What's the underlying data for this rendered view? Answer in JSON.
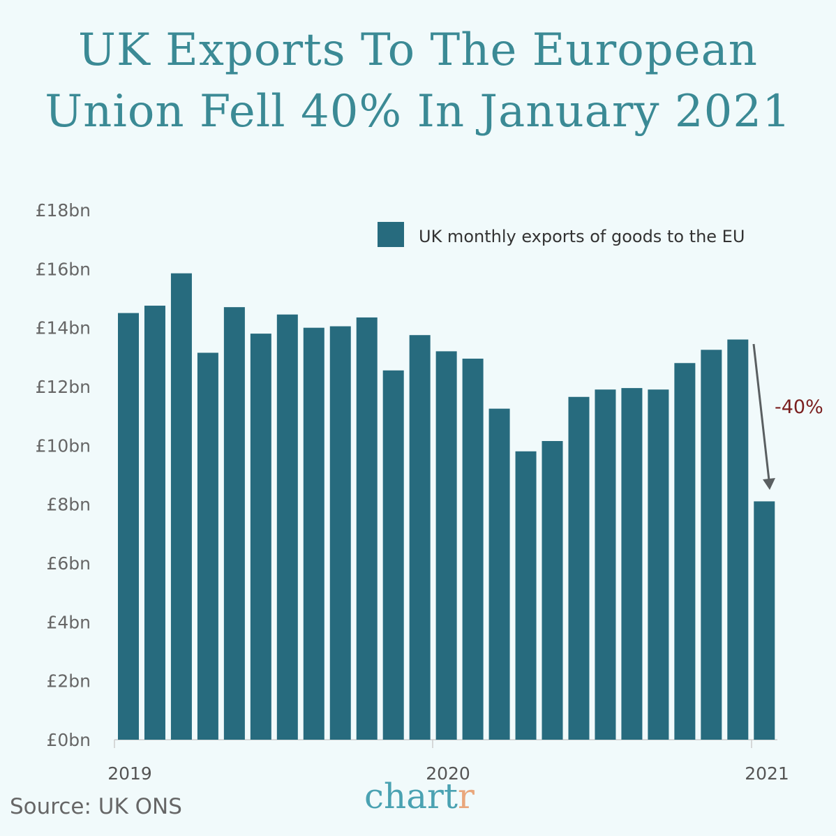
{
  "title_line1": "UK Exports To The European",
  "title_line2": "Union Fell 40% In January 2021",
  "source": "Source: UK ONS",
  "logo": {
    "main": "chart",
    "last": "r"
  },
  "colors": {
    "bar": "#276b7e",
    "title": "#3b8a95",
    "annotation": "#7a1f1f",
    "arrow": "#5a5f61",
    "background": "#f1fafb"
  },
  "chart_data": {
    "type": "bar",
    "title": "UK Exports To The European Union Fell 40% In January 2021",
    "ylim": [
      0,
      18
    ],
    "y_ticks": [
      "£0bn",
      "£2bn",
      "£4bn",
      "£6bn",
      "£8bn",
      "£10bn",
      "£12bn",
      "£14bn",
      "£16bn",
      "£18bn"
    ],
    "x_ticks": [
      "2019",
      "2020",
      "2021"
    ],
    "grid": false,
    "legend": {
      "position": "top-right",
      "entries": [
        "UK monthly exports of goods to the EU"
      ]
    },
    "categories": [
      "2019-01",
      "2019-02",
      "2019-03",
      "2019-04",
      "2019-05",
      "2019-06",
      "2019-07",
      "2019-08",
      "2019-09",
      "2019-10",
      "2019-11",
      "2019-12",
      "2020-01",
      "2020-02",
      "2020-03",
      "2020-04",
      "2020-05",
      "2020-06",
      "2020-07",
      "2020-08",
      "2020-09",
      "2020-10",
      "2020-11",
      "2020-12",
      "2021-01"
    ],
    "series": [
      {
        "name": "UK monthly exports of goods to the EU",
        "unit": "£bn",
        "values": [
          14.5,
          14.75,
          15.85,
          13.15,
          14.7,
          13.8,
          14.45,
          14.0,
          14.05,
          14.35,
          12.55,
          13.75,
          13.2,
          12.95,
          11.25,
          9.8,
          10.15,
          11.65,
          11.9,
          11.95,
          11.9,
          12.8,
          13.25,
          13.6,
          8.1
        ]
      }
    ],
    "annotation": {
      "text": "-40%",
      "from": "2020-12",
      "to": "2021-01"
    }
  }
}
